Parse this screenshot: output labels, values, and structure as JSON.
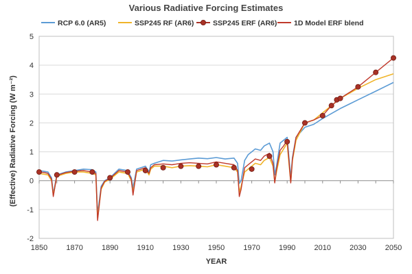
{
  "chart_data": {
    "type": "line",
    "title": "Various Radiative Forcing Estimates",
    "xlabel": "YEAR",
    "ylabel": "(Effective) Radiative Forcing (W m⁻²)",
    "xlim": [
      1850,
      2050
    ],
    "ylim": [
      -2,
      5
    ],
    "xticks": [
      "1850",
      "1870",
      "1890",
      "1910",
      "1930",
      "1950",
      "1970",
      "1990",
      "2010",
      "2030",
      "2050"
    ],
    "yticks": [
      "-2",
      "-1",
      "0",
      "1",
      "2",
      "3",
      "4",
      "5"
    ],
    "grid": "horizontal",
    "legend": "top",
    "series": [
      {
        "name": "RCP 6.0 (AR5)",
        "color": "#5b9bd5",
        "style": "line",
        "x": [
          1850,
          1853,
          1855,
          1857,
          1858,
          1860,
          1865,
          1870,
          1875,
          1880,
          1882,
          1883,
          1885,
          1887,
          1890,
          1895,
          1900,
          1902,
          1903,
          1905,
          1910,
          1912,
          1913,
          1915,
          1920,
          1925,
          1930,
          1935,
          1940,
          1945,
          1950,
          1955,
          1960,
          1962,
          1963,
          1964,
          1966,
          1968,
          1970,
          1972,
          1975,
          1977,
          1980,
          1982,
          1983,
          1984,
          1986,
          1988,
          1990,
          1991,
          1992,
          1993,
          1995,
          2000,
          2005,
          2010,
          2020,
          2030,
          2040,
          2050
        ],
        "y": [
          0.35,
          0.32,
          0.3,
          0.1,
          -0.45,
          0.2,
          0.3,
          0.35,
          0.4,
          0.38,
          0.3,
          -1.15,
          -0.2,
          0.0,
          0.1,
          0.4,
          0.35,
          0.1,
          -0.25,
          0.4,
          0.5,
          0.3,
          0.55,
          0.6,
          0.7,
          0.68,
          0.72,
          0.75,
          0.78,
          0.76,
          0.8,
          0.75,
          0.78,
          0.6,
          -0.1,
          0.0,
          0.7,
          0.9,
          1.0,
          1.1,
          1.05,
          1.2,
          1.3,
          1.0,
          0.2,
          0.5,
          1.3,
          1.4,
          1.5,
          0.8,
          0.1,
          0.8,
          1.5,
          1.85,
          1.95,
          2.15,
          2.5,
          2.8,
          3.1,
          3.4
        ]
      },
      {
        "name": "SSP245 RF (AR6)",
        "color": "#f0b429",
        "style": "line",
        "x": [
          1850,
          1853,
          1855,
          1857,
          1858,
          1860,
          1865,
          1870,
          1875,
          1880,
          1882,
          1883,
          1885,
          1887,
          1890,
          1895,
          1900,
          1902,
          1903,
          1905,
          1910,
          1912,
          1913,
          1915,
          1920,
          1925,
          1930,
          1935,
          1940,
          1945,
          1950,
          1955,
          1960,
          1962,
          1963,
          1964,
          1966,
          1968,
          1970,
          1972,
          1975,
          1977,
          1980,
          1982,
          1983,
          1984,
          1986,
          1988,
          1990,
          1991,
          1992,
          1993,
          1995,
          2000,
          2005,
          2010,
          2020,
          2030,
          2040,
          2050
        ],
        "y": [
          0.25,
          0.22,
          0.2,
          0.0,
          -0.5,
          0.15,
          0.25,
          0.3,
          0.3,
          0.25,
          0.2,
          -1.3,
          -0.3,
          -0.05,
          0.05,
          0.3,
          0.25,
          0.0,
          -0.4,
          0.3,
          0.4,
          0.2,
          0.4,
          0.5,
          0.5,
          0.45,
          0.5,
          0.52,
          0.5,
          0.48,
          0.55,
          0.5,
          0.45,
          0.3,
          -0.4,
          -0.2,
          0.3,
          0.4,
          0.5,
          0.6,
          0.55,
          0.7,
          0.8,
          0.5,
          -0.05,
          0.3,
          0.9,
          1.1,
          1.3,
          0.6,
          -0.05,
          0.7,
          1.4,
          2.0,
          2.1,
          2.35,
          2.85,
          3.2,
          3.5,
          3.7
        ]
      },
      {
        "name": "SSP245 ERF (AR6)",
        "color": "#a93226",
        "style": "markers",
        "x": [
          1850,
          1860,
          1870,
          1880,
          1890,
          1900,
          1910,
          1920,
          1930,
          1940,
          1950,
          1960,
          1970,
          1980,
          1990,
          2000,
          2010,
          2015,
          2018,
          2020,
          2030,
          2040,
          2050
        ],
        "y": [
          0.3,
          0.2,
          0.3,
          0.3,
          0.1,
          0.3,
          0.35,
          0.45,
          0.5,
          0.5,
          0.55,
          0.45,
          0.4,
          0.85,
          1.35,
          2.0,
          2.25,
          2.6,
          2.8,
          2.85,
          3.25,
          3.75,
          4.25
        ]
      },
      {
        "name": "1D Model ERF blend",
        "color": "#c0392b",
        "style": "line",
        "x": [
          1850,
          1853,
          1855,
          1857,
          1858,
          1860,
          1865,
          1870,
          1875,
          1880,
          1882,
          1883,
          1885,
          1887,
          1890,
          1895,
          1900,
          1902,
          1903,
          1905,
          1910,
          1912,
          1913,
          1915,
          1920,
          1925,
          1930,
          1935,
          1940,
          1945,
          1950,
          1955,
          1960,
          1962,
          1963,
          1964,
          1966,
          1968,
          1970,
          1972,
          1975,
          1977,
          1980,
          1982,
          1983,
          1984,
          1986,
          1988,
          1990,
          1991,
          1992,
          1993,
          1995,
          2000,
          2005,
          2010,
          2015,
          2020,
          2030,
          2040,
          2050
        ],
        "y": [
          0.3,
          0.28,
          0.25,
          0.05,
          -0.55,
          0.18,
          0.28,
          0.33,
          0.35,
          0.3,
          0.25,
          -1.38,
          -0.25,
          -0.02,
          0.08,
          0.35,
          0.3,
          0.05,
          -0.5,
          0.35,
          0.45,
          0.25,
          0.45,
          0.55,
          0.58,
          0.55,
          0.6,
          0.62,
          0.6,
          0.58,
          0.65,
          0.6,
          0.55,
          0.35,
          -0.55,
          -0.3,
          0.45,
          0.55,
          0.65,
          0.75,
          0.7,
          0.85,
          0.95,
          0.6,
          -0.08,
          0.4,
          1.05,
          1.2,
          1.4,
          0.7,
          -0.08,
          0.75,
          1.5,
          2.0,
          2.1,
          2.25,
          2.6,
          2.85,
          3.25,
          3.75,
          4.25
        ]
      }
    ]
  }
}
